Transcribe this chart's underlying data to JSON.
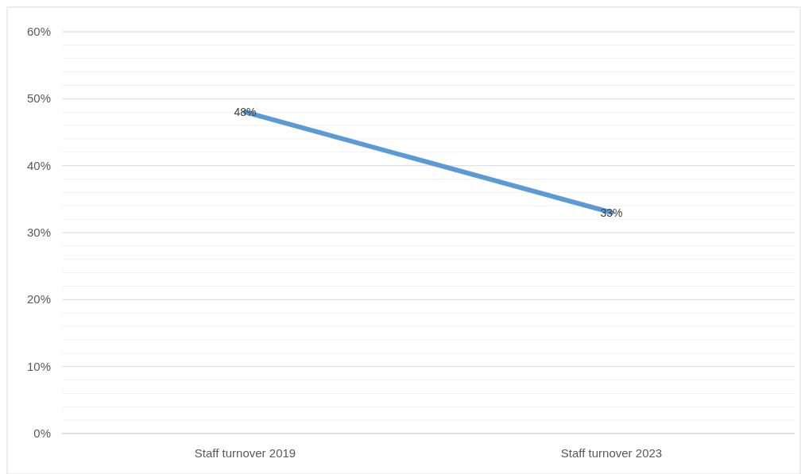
{
  "chart_data": {
    "type": "line",
    "categories": [
      "Staff turnover 2019",
      "Staff turnover 2023"
    ],
    "series": [
      {
        "color": "#5b9bd5",
        "values": [
          48,
          33
        ],
        "value_labels": [
          "48%",
          "33%"
        ]
      }
    ],
    "ylim": [
      0,
      60
    ],
    "yticks": [
      {
        "value": 0,
        "label": "0%"
      },
      {
        "value": 2,
        "label": null
      },
      {
        "value": 4,
        "label": null
      },
      {
        "value": 6,
        "label": null
      },
      {
        "value": 8,
        "label": null
      },
      {
        "value": 10,
        "label": "10%"
      },
      {
        "value": 12,
        "label": null
      },
      {
        "value": 14,
        "label": null
      },
      {
        "value": 16,
        "label": null
      },
      {
        "value": 18,
        "label": null
      },
      {
        "value": 20,
        "label": "20%"
      },
      {
        "value": 22,
        "label": null
      },
      {
        "value": 24,
        "label": null
      },
      {
        "value": 26,
        "label": null
      },
      {
        "value": 28,
        "label": null
      },
      {
        "value": 30,
        "label": "30%"
      },
      {
        "value": 32,
        "label": null
      },
      {
        "value": 34,
        "label": null
      },
      {
        "value": 36,
        "label": null
      },
      {
        "value": 38,
        "label": null
      },
      {
        "value": 40,
        "label": "40%"
      },
      {
        "value": 42,
        "label": null
      },
      {
        "value": 44,
        "label": null
      },
      {
        "value": 46,
        "label": null
      },
      {
        "value": 48,
        "label": null
      },
      {
        "value": 50,
        "label": "50%"
      },
      {
        "value": 52,
        "label": null
      },
      {
        "value": 54,
        "label": null
      },
      {
        "value": 56,
        "label": null
      },
      {
        "value": 58,
        "label": null
      },
      {
        "value": 60,
        "label": "60%"
      }
    ],
    "grid": true,
    "marker": "none",
    "line_style": "solid"
  }
}
